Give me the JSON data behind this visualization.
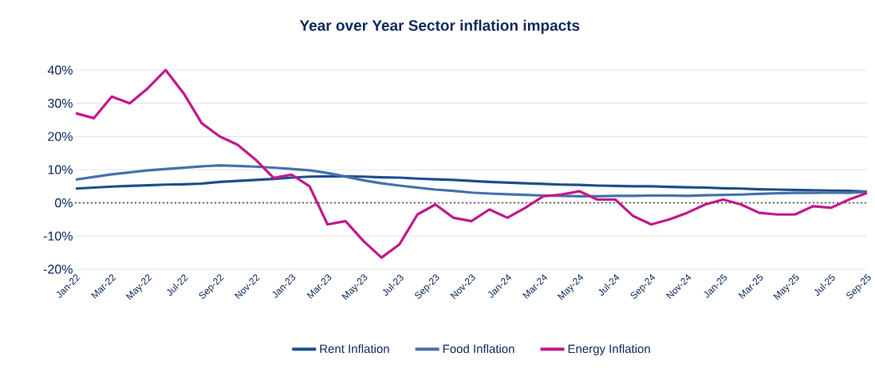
{
  "chart_data": {
    "type": "line",
    "title": "Year over Year Sector inflation impacts",
    "categories": [
      "Jan-22",
      null,
      "Mar-22",
      null,
      "May-22",
      null,
      "Jul-22",
      null,
      "Sep-22",
      null,
      "Nov-22",
      null,
      "Jan-23",
      null,
      "Mar-23",
      null,
      "May-23",
      null,
      "Jul-23",
      null,
      "Sep-23",
      null,
      "Nov-23",
      null,
      "Jan-24",
      null,
      "Mar-24",
      null,
      "May-24",
      null,
      "Jul-24",
      null,
      "Sep-24",
      null,
      "Nov-24",
      null,
      "Jan-25",
      null,
      "Mar-25",
      null,
      "May-25",
      null,
      "Jul-25",
      null,
      "Sep-25"
    ],
    "series": [
      {
        "name": "Rent Inflation",
        "color": "#1f4e8c",
        "values": [
          4.3,
          4.6,
          4.9,
          5.1,
          5.3,
          5.5,
          5.6,
          5.8,
          6.3,
          6.6,
          6.9,
          7.2,
          7.6,
          7.9,
          8.0,
          8.0,
          7.9,
          7.7,
          7.6,
          7.3,
          7.1,
          6.9,
          6.6,
          6.3,
          6.1,
          5.9,
          5.7,
          5.5,
          5.4,
          5.2,
          5.1,
          5.0,
          5.0,
          4.8,
          4.7,
          4.6,
          4.4,
          4.3,
          4.1,
          4.0,
          3.9,
          3.8,
          3.7,
          3.6,
          3.4
        ]
      },
      {
        "name": "Food Inflation",
        "color": "#4472aa",
        "values": [
          7.0,
          7.8,
          8.6,
          9.2,
          9.8,
          10.2,
          10.6,
          11.0,
          11.3,
          11.1,
          10.9,
          10.6,
          10.2,
          9.8,
          9.0,
          7.9,
          6.8,
          5.9,
          5.2,
          4.6,
          4.0,
          3.6,
          3.1,
          2.8,
          2.6,
          2.4,
          2.2,
          2.1,
          2.0,
          2.0,
          2.1,
          2.1,
          2.2,
          2.2,
          2.1,
          2.3,
          2.4,
          2.5,
          2.7,
          2.9,
          3.0,
          3.0,
          3.1,
          3.0,
          3.3
        ]
      },
      {
        "name": "Energy Inflation",
        "color": "#c0198b",
        "values": [
          27,
          25.5,
          32,
          30,
          34.5,
          40,
          33,
          24,
          20,
          17.5,
          13,
          7.5,
          8.5,
          5,
          -6.5,
          -5.5,
          -11.5,
          -16.5,
          -12.5,
          -3.5,
          -0.5,
          -4.5,
          -5.5,
          -2,
          -4.5,
          -1.5,
          2,
          2.5,
          3.5,
          1,
          1,
          -4,
          -6.5,
          -5,
          -3,
          -0.5,
          1,
          -0.5,
          -3,
          -3.5,
          -3.5,
          -1,
          -1.5,
          1,
          3
        ]
      }
    ],
    "ylim": [
      -20,
      40
    ],
    "yticks": [
      {
        "value": -20,
        "label": "-20%"
      },
      {
        "value": -10,
        "label": "-10%"
      },
      {
        "value": 0,
        "label": "0%"
      },
      {
        "value": 10,
        "label": "10%"
      },
      {
        "value": 20,
        "label": "20%"
      },
      {
        "value": 30,
        "label": "30%"
      },
      {
        "value": 40,
        "label": "40%"
      }
    ],
    "grid": "y",
    "legend": "bottom",
    "marker": "none",
    "line_style": "solid",
    "ref_lines": [
      {
        "axis": "y",
        "value": 0,
        "color": "#000000",
        "line_style": "dotted"
      }
    ]
  }
}
